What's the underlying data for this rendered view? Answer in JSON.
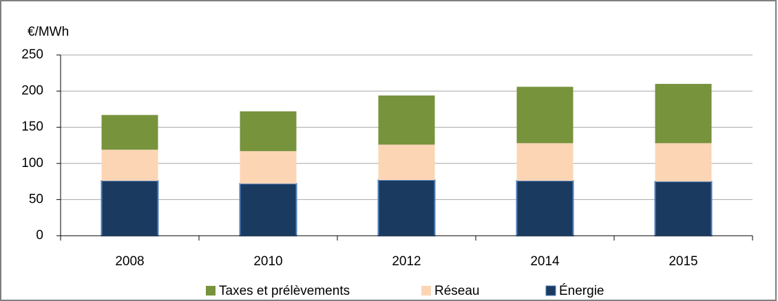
{
  "chart_data": {
    "type": "stacked-bar",
    "y_label": "€/MWh",
    "categories": [
      "2008",
      "2010",
      "2012",
      "2014",
      "2015"
    ],
    "series": [
      {
        "name": "Énergie",
        "color": "#1b3a5f",
        "values": [
          76,
          72,
          77,
          76,
          75
        ]
      },
      {
        "name": "Réseau",
        "color": "#fcd5b5",
        "values": [
          43,
          45,
          49,
          52,
          53
        ]
      },
      {
        "name": "Taxes et prélèvements",
        "color": "#77933c",
        "values": [
          48,
          55,
          68,
          78,
          82
        ]
      }
    ],
    "ylim": [
      0,
      250
    ],
    "yticks": [
      0,
      50,
      100,
      150,
      200,
      250
    ],
    "grid": true
  }
}
